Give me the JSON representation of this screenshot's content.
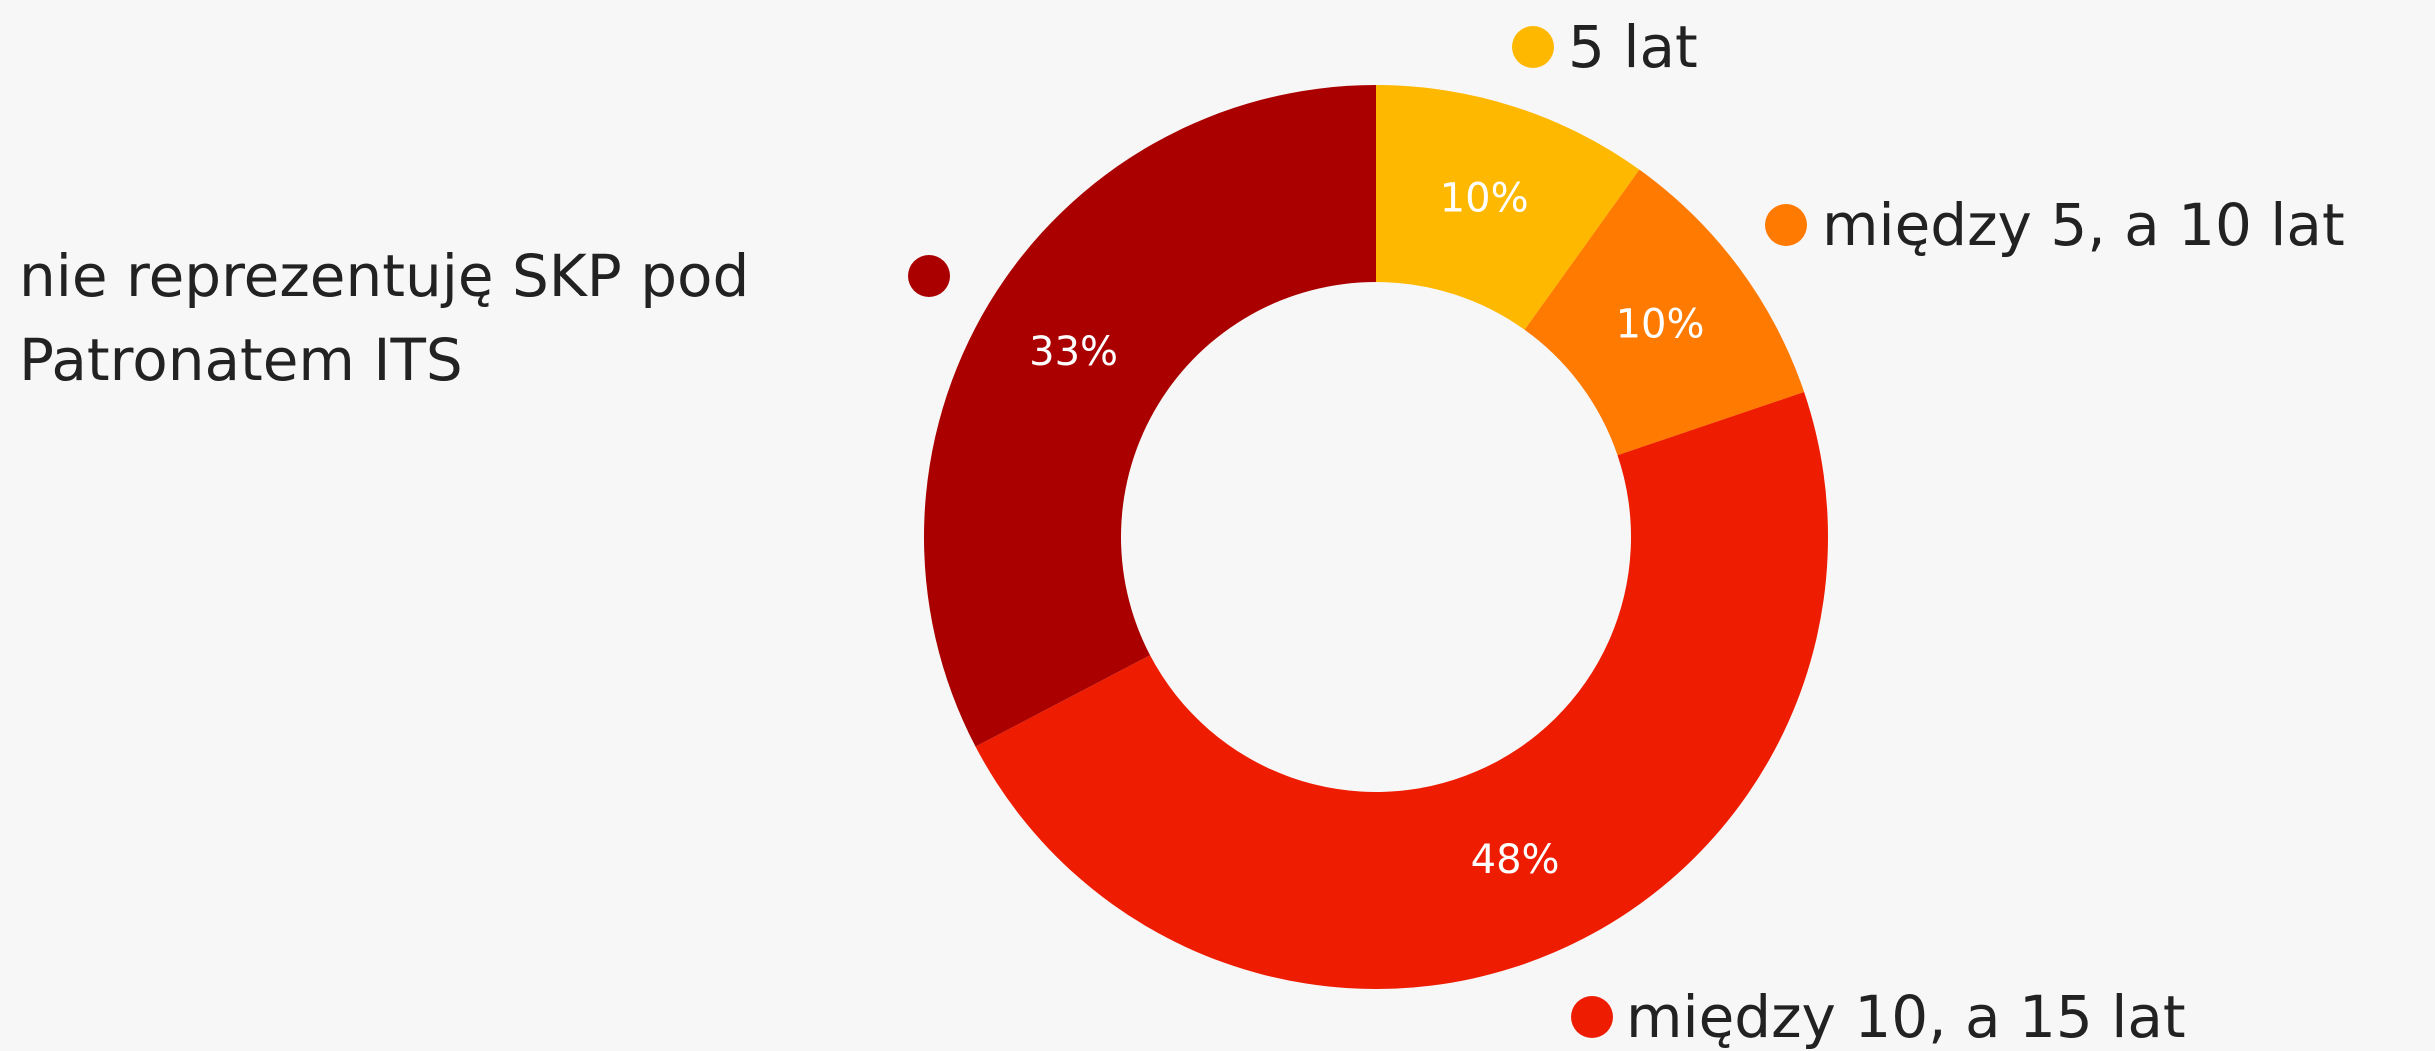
{
  "chart_data": {
    "type": "donut",
    "categories": [
      "5 lat",
      "między 5, a 10 lat",
      "między 10, a 15 lat",
      "nie reprezentuję SKP pod Patronatem ITS"
    ],
    "values": [
      10,
      10,
      48,
      33
    ],
    "value_labels": [
      "10%",
      "10%",
      "48%",
      "33%"
    ],
    "colors": [
      "#ffb800",
      "#ff7a00",
      "#ee1c00",
      "#aa0000"
    ]
  }
}
